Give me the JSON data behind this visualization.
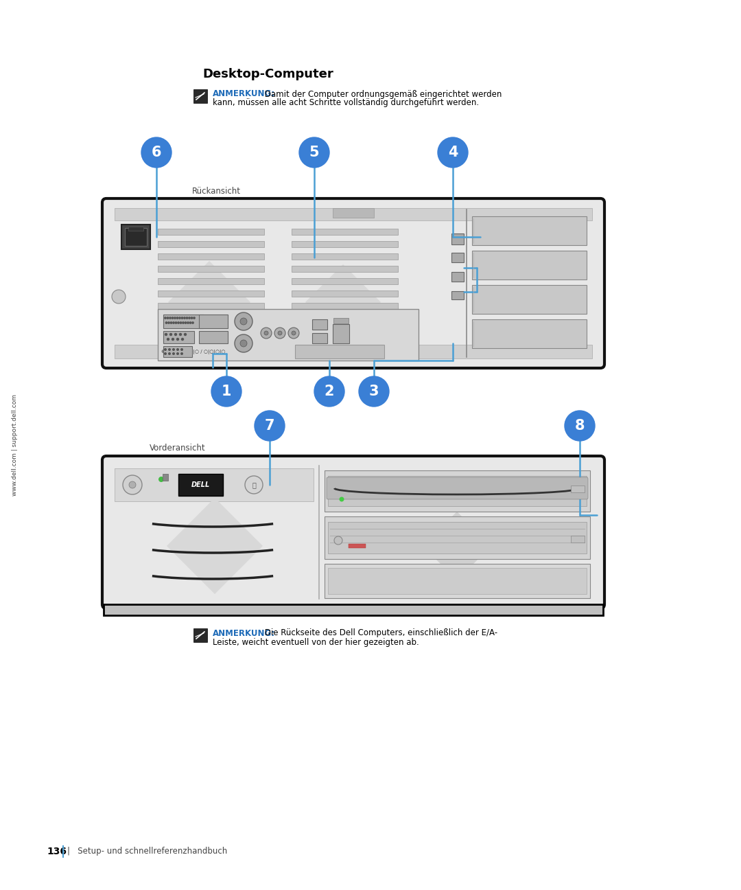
{
  "bg_color": "#ffffff",
  "title": "Desktop-Computer",
  "note_label_color": "#1e6bb8",
  "anmerkung_text1": "ANMERKUNG:",
  "anmerkung_body1_line1": " Damit der Computer ordnungsgemäß eingerichtet werden",
  "anmerkung_body1_line2": "kann, müssen alle acht Schritte vollständig durchgeführt werden.",
  "anmerkung_text2": "ANMERKUNG:",
  "anmerkung_body2_line1": " Die Rückseite des Dell Computers, einschließlich der E/A-",
  "anmerkung_body2_line2": "Leiste, weicht eventuell von der hier gezeigten ab.",
  "label_rueckansicht": "Rückansicht",
  "label_vorderansicht": "Vorderansicht",
  "bubble_color": "#3a7fd5",
  "bubble_text_color": "#ffffff",
  "line_color": "#4a9fd4",
  "sidebar_text": "www.dell.com | support.dell.com",
  "footer_page": "136",
  "footer_sep": "|",
  "footer_text": "Setup- und schnellreferenzhandbuch",
  "chassis_face": "#e8e8e8",
  "chassis_edge": "#111111",
  "vent_color": "#c8c8c8",
  "vent_edge": "#888888",
  "slot_color": "#cccccc",
  "io_bg": "#d5d5d5",
  "dark_port": "#888888",
  "psu_color": "#555555"
}
